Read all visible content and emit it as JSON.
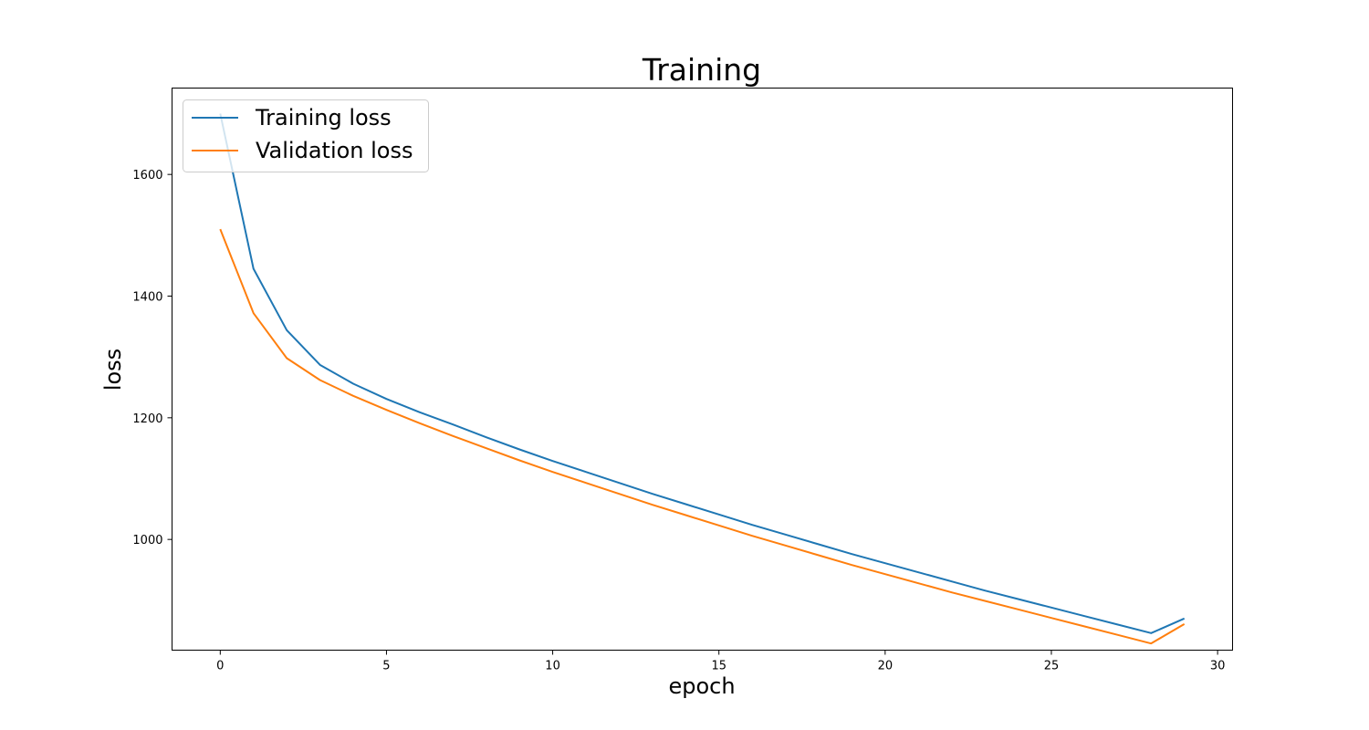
{
  "chart_data": {
    "type": "line",
    "title": "Training",
    "xlabel": "epoch",
    "ylabel": "loss",
    "xlim": [
      -1.45,
      30.45
    ],
    "ylim": [
      818,
      1742
    ],
    "xticks": [
      0,
      5,
      10,
      15,
      20,
      25,
      30
    ],
    "yticks": [
      1000,
      1200,
      1400,
      1600
    ],
    "grid": false,
    "legend_position": "top-left",
    "x": [
      0,
      1,
      2,
      3,
      4,
      5,
      6,
      7,
      8,
      9,
      10,
      11,
      12,
      13,
      14,
      15,
      16,
      17,
      18,
      19,
      20,
      21,
      22,
      23,
      24,
      25,
      26,
      27,
      28,
      29
    ],
    "series": [
      {
        "name": "Training loss",
        "color": "#1f77b4",
        "values": [
          1700,
          1445,
          1344,
          1287,
          1256,
          1231,
          1209,
          1189,
          1168,
          1148,
          1129,
          1111,
          1093,
          1075,
          1058,
          1041,
          1024,
          1008,
          992,
          976,
          961,
          946,
          931,
          916,
          902,
          888,
          874,
          860,
          846,
          870
        ]
      },
      {
        "name": "Validation loss",
        "color": "#ff7f0e",
        "values": [
          1510,
          1372,
          1298,
          1262,
          1236,
          1213,
          1191,
          1170,
          1150,
          1130,
          1111,
          1093,
          1075,
          1057,
          1040,
          1023,
          1006,
          990,
          974,
          958,
          943,
          928,
          913,
          899,
          885,
          871,
          857,
          843,
          829,
          861
        ]
      }
    ]
  }
}
